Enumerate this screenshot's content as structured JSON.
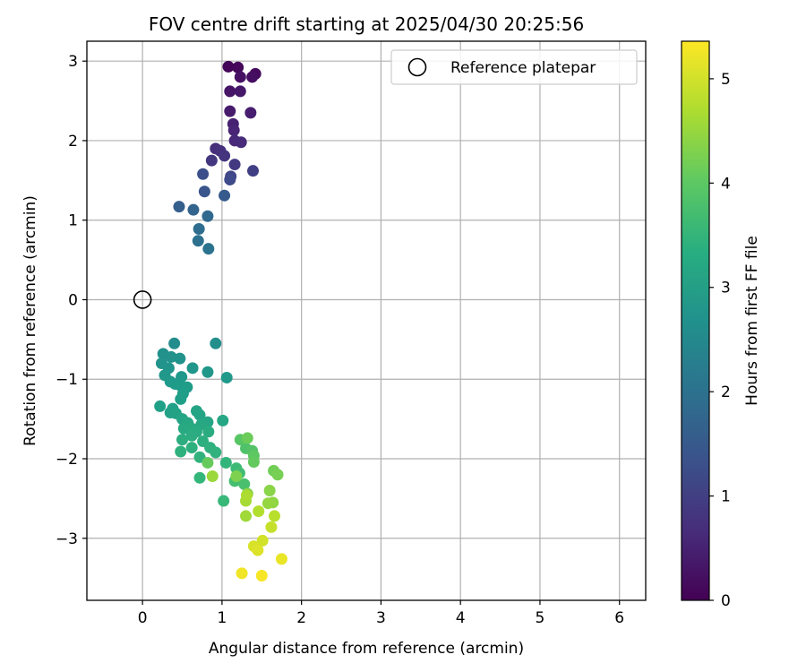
{
  "chart_data": {
    "type": "scatter",
    "title": "FOV centre drift starting at 2025/04/30 20:25:56",
    "xlabel": "Angular distance from reference (arcmin)",
    "ylabel": "Rotation from reference (arcmin)",
    "xlim": [
      -0.7,
      6.33
    ],
    "ylim": [
      -3.78,
      3.25
    ],
    "xticks": [
      0,
      1,
      2,
      3,
      4,
      5,
      6
    ],
    "yticks": [
      3,
      2,
      1,
      0,
      -1,
      -2,
      -3
    ],
    "xtick_labels": [
      "0",
      "1",
      "2",
      "3",
      "4",
      "5",
      "6"
    ],
    "ytick_labels": [
      "3",
      "2",
      "1",
      "0",
      "−1",
      "−2",
      "−3"
    ],
    "grid": true,
    "legend": {
      "position": "top-right",
      "entries": [
        "Reference platepar"
      ]
    },
    "reference_point": {
      "x": 0,
      "y": 0,
      "marker": "open-circle"
    },
    "colorbar": {
      "label": "Hours from first FF file",
      "colormap": "viridis",
      "range": [
        0,
        5.36
      ],
      "ticks": [
        0,
        1,
        2,
        3,
        4,
        5
      ],
      "tick_labels": [
        "0",
        "1",
        "2",
        "3",
        "4",
        "5"
      ]
    },
    "series": [
      {
        "points": [
          {
            "x": 1.08,
            "y": 2.93,
            "c": 0.05
          },
          {
            "x": 1.2,
            "y": 2.92,
            "c": 0.1
          },
          {
            "x": 1.42,
            "y": 2.84,
            "c": 0.15
          },
          {
            "x": 1.38,
            "y": 2.8,
            "c": 0.2
          },
          {
            "x": 1.23,
            "y": 2.8,
            "c": 0.25
          },
          {
            "x": 1.1,
            "y": 2.62,
            "c": 0.3
          },
          {
            "x": 1.23,
            "y": 2.62,
            "c": 0.35
          },
          {
            "x": 1.1,
            "y": 2.37,
            "c": 0.4
          },
          {
            "x": 1.36,
            "y": 2.35,
            "c": 0.45
          },
          {
            "x": 1.14,
            "y": 2.21,
            "c": 0.5
          },
          {
            "x": 1.15,
            "y": 2.13,
            "c": 0.55
          },
          {
            "x": 1.16,
            "y": 2.0,
            "c": 0.6
          },
          {
            "x": 1.24,
            "y": 1.98,
            "c": 0.65
          },
          {
            "x": 0.92,
            "y": 1.9,
            "c": 0.7
          },
          {
            "x": 0.98,
            "y": 1.87,
            "c": 0.75
          },
          {
            "x": 1.03,
            "y": 1.81,
            "c": 0.8
          },
          {
            "x": 0.87,
            "y": 1.75,
            "c": 0.85
          },
          {
            "x": 1.16,
            "y": 1.7,
            "c": 0.9
          },
          {
            "x": 1.39,
            "y": 1.62,
            "c": 1.0
          },
          {
            "x": 1.11,
            "y": 1.55,
            "c": 1.1
          },
          {
            "x": 1.1,
            "y": 1.51,
            "c": 1.2
          },
          {
            "x": 0.76,
            "y": 1.58,
            "c": 1.3
          },
          {
            "x": 0.78,
            "y": 1.36,
            "c": 1.4
          },
          {
            "x": 1.03,
            "y": 1.31,
            "c": 1.5
          },
          {
            "x": 0.46,
            "y": 1.17,
            "c": 1.6
          },
          {
            "x": 0.64,
            "y": 1.13,
            "c": 1.7
          },
          {
            "x": 0.82,
            "y": 1.05,
            "c": 1.8
          },
          {
            "x": 0.71,
            "y": 0.89,
            "c": 1.9
          },
          {
            "x": 0.7,
            "y": 0.74,
            "c": 2.0
          },
          {
            "x": 0.83,
            "y": 0.64,
            "c": 2.05
          },
          {
            "x": 0.4,
            "y": -0.55,
            "c": 2.6
          },
          {
            "x": 0.92,
            "y": -0.55,
            "c": 2.65
          },
          {
            "x": 0.26,
            "y": -0.68,
            "c": 2.7
          },
          {
            "x": 0.36,
            "y": -0.72,
            "c": 2.72
          },
          {
            "x": 0.47,
            "y": -0.74,
            "c": 2.74
          },
          {
            "x": 0.24,
            "y": -0.8,
            "c": 2.76
          },
          {
            "x": 0.33,
            "y": -0.86,
            "c": 2.78
          },
          {
            "x": 0.63,
            "y": -0.86,
            "c": 2.8
          },
          {
            "x": 0.82,
            "y": -0.91,
            "c": 2.82
          },
          {
            "x": 0.28,
            "y": -0.95,
            "c": 2.84
          },
          {
            "x": 0.49,
            "y": -0.97,
            "c": 2.86
          },
          {
            "x": 1.06,
            "y": -0.98,
            "c": 2.88
          },
          {
            "x": 0.35,
            "y": -1.03,
            "c": 2.9
          },
          {
            "x": 0.41,
            "y": -1.06,
            "c": 2.92
          },
          {
            "x": 0.48,
            "y": -1.08,
            "c": 2.94
          },
          {
            "x": 0.56,
            "y": -1.1,
            "c": 2.96
          },
          {
            "x": 0.51,
            "y": -1.18,
            "c": 2.98
          },
          {
            "x": 0.48,
            "y": -1.25,
            "c": 3.0
          },
          {
            "x": 0.22,
            "y": -1.34,
            "c": 3.02
          },
          {
            "x": 0.38,
            "y": -1.37,
            "c": 3.04
          },
          {
            "x": 0.35,
            "y": -1.42,
            "c": 3.06
          },
          {
            "x": 0.42,
            "y": -1.43,
            "c": 3.08
          },
          {
            "x": 0.68,
            "y": -1.4,
            "c": 3.1
          },
          {
            "x": 0.72,
            "y": -1.45,
            "c": 3.12
          },
          {
            "x": 0.5,
            "y": -1.5,
            "c": 3.14
          },
          {
            "x": 1.01,
            "y": -1.52,
            "c": 3.16
          },
          {
            "x": 0.82,
            "y": -1.54,
            "c": 3.18
          },
          {
            "x": 0.57,
            "y": -1.55,
            "c": 3.2
          },
          {
            "x": 0.74,
            "y": -1.57,
            "c": 3.22
          },
          {
            "x": 0.52,
            "y": -1.62,
            "c": 3.24
          },
          {
            "x": 0.62,
            "y": -1.62,
            "c": 3.26
          },
          {
            "x": 0.68,
            "y": -1.66,
            "c": 3.28
          },
          {
            "x": 0.83,
            "y": -1.66,
            "c": 3.3
          },
          {
            "x": 0.62,
            "y": -1.71,
            "c": 3.32
          },
          {
            "x": 0.5,
            "y": -1.76,
            "c": 3.34
          },
          {
            "x": 0.76,
            "y": -1.78,
            "c": 3.36
          },
          {
            "x": 0.62,
            "y": -1.86,
            "c": 3.38
          },
          {
            "x": 0.85,
            "y": -1.86,
            "c": 3.4
          },
          {
            "x": 0.48,
            "y": -1.91,
            "c": 3.42
          },
          {
            "x": 0.92,
            "y": -1.92,
            "c": 3.44
          },
          {
            "x": 0.72,
            "y": -1.98,
            "c": 3.46
          },
          {
            "x": 1.05,
            "y": -2.05,
            "c": 3.5
          },
          {
            "x": 0.72,
            "y": -2.24,
            "c": 3.55
          },
          {
            "x": 1.02,
            "y": -2.53,
            "c": 3.6
          },
          {
            "x": 1.18,
            "y": -2.12,
            "c": 3.65
          },
          {
            "x": 1.22,
            "y": -2.18,
            "c": 3.7
          },
          {
            "x": 1.16,
            "y": -2.28,
            "c": 3.75
          },
          {
            "x": 1.28,
            "y": -2.32,
            "c": 3.8
          },
          {
            "x": 1.3,
            "y": -1.87,
            "c": 3.85
          },
          {
            "x": 1.38,
            "y": -1.9,
            "c": 3.9
          },
          {
            "x": 1.23,
            "y": -1.76,
            "c": 3.95
          },
          {
            "x": 1.4,
            "y": -1.96,
            "c": 4.0
          },
          {
            "x": 1.4,
            "y": -2.04,
            "c": 4.05
          },
          {
            "x": 1.32,
            "y": -1.74,
            "c": 4.15
          },
          {
            "x": 0.82,
            "y": -2.05,
            "c": 4.1
          },
          {
            "x": 1.65,
            "y": -2.15,
            "c": 4.2
          },
          {
            "x": 1.7,
            "y": -2.2,
            "c": 4.25
          },
          {
            "x": 1.32,
            "y": -2.44,
            "c": 4.35
          },
          {
            "x": 1.6,
            "y": -2.4,
            "c": 4.4
          },
          {
            "x": 1.64,
            "y": -2.55,
            "c": 4.45
          },
          {
            "x": 1.58,
            "y": -2.56,
            "c": 4.5
          },
          {
            "x": 0.88,
            "y": -2.22,
            "c": 4.55
          },
          {
            "x": 1.3,
            "y": -2.72,
            "c": 4.6
          },
          {
            "x": 1.3,
            "y": -2.53,
            "c": 4.65
          },
          {
            "x": 1.31,
            "y": -2.46,
            "c": 4.7
          },
          {
            "x": 1.46,
            "y": -2.66,
            "c": 4.75
          },
          {
            "x": 1.66,
            "y": -2.72,
            "c": 4.8
          },
          {
            "x": 1.62,
            "y": -2.86,
            "c": 4.9
          },
          {
            "x": 1.51,
            "y": -3.03,
            "c": 5.0
          },
          {
            "x": 1.4,
            "y": -3.1,
            "c": 5.05
          },
          {
            "x": 1.45,
            "y": -3.15,
            "c": 5.1
          },
          {
            "x": 1.75,
            "y": -3.26,
            "c": 5.2
          },
          {
            "x": 1.25,
            "y": -3.44,
            "c": 5.25
          },
          {
            "x": 1.5,
            "y": -3.47,
            "c": 5.3
          },
          {
            "x": 1.18,
            "y": -2.22,
            "c": 4.3
          }
        ]
      }
    ]
  }
}
